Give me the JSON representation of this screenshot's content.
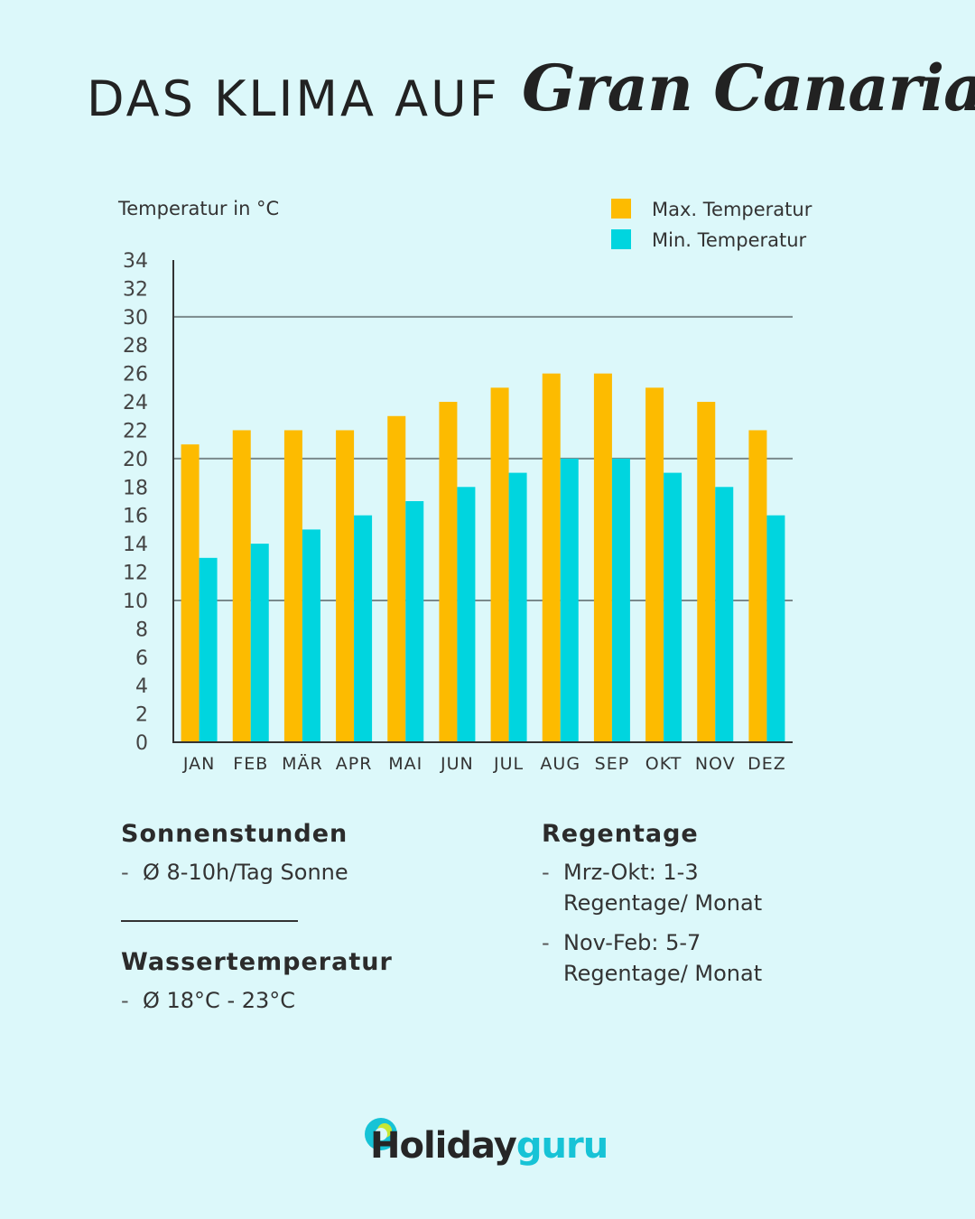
{
  "title": {
    "main": "DAS KLIMA AUF",
    "script": "Gran Canaria"
  },
  "colors": {
    "background": "#dcf8fa",
    "max": "#fdbb00",
    "min": "#00d5df",
    "grid": "#7a8a8c"
  },
  "chart_data": {
    "type": "bar",
    "ylabel": "Temperatur in °C",
    "ylim": [
      0,
      34
    ],
    "yticks": [
      0,
      2,
      4,
      6,
      8,
      10,
      12,
      14,
      16,
      18,
      20,
      22,
      24,
      26,
      28,
      30,
      32,
      34
    ],
    "gridlines": [
      10,
      20,
      30
    ],
    "legend_position": "top-right",
    "categories": [
      "JAN",
      "FEB",
      "MÄR",
      "APR",
      "MAI",
      "JUN",
      "JUL",
      "AUG",
      "SEP",
      "OKT",
      "NOV",
      "DEZ"
    ],
    "series": [
      {
        "name": "Max. Temperatur",
        "color": "#fdbb00",
        "values": [
          21,
          22,
          22,
          22,
          23,
          24,
          25,
          26,
          26,
          25,
          24,
          22
        ]
      },
      {
        "name": "Min. Temperatur",
        "color": "#00d5df",
        "values": [
          13,
          14,
          15,
          16,
          17,
          18,
          19,
          20,
          20,
          19,
          18,
          16
        ]
      }
    ]
  },
  "sun": {
    "heading": "Sonnenstunden",
    "items": [
      "Ø 8-10h/Tag Sonne"
    ]
  },
  "water": {
    "heading": "Wassertemperatur",
    "items": [
      "Ø 18°C - 23°C"
    ]
  },
  "rain": {
    "heading": "Regentage",
    "items": [
      "Mrz-Okt: 1-3 Regentage/ Monat",
      "Nov-Feb: 5-7 Regentage/ Monat"
    ]
  },
  "logo": {
    "part1": "Holiday",
    "part2": "guru",
    "icon": "globe-icon"
  }
}
